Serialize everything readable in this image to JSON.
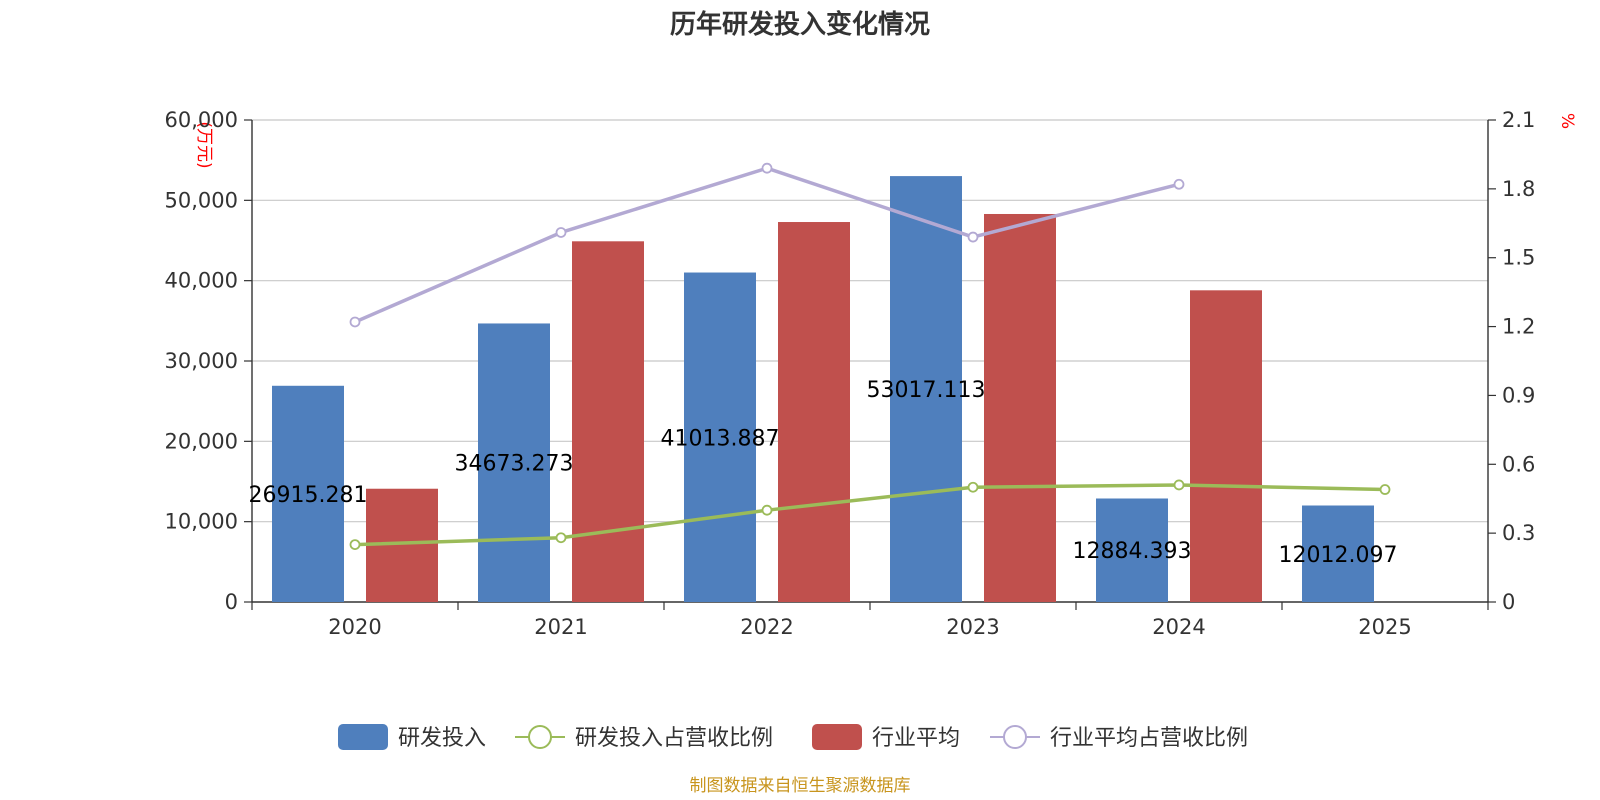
{
  "chart_data": {
    "type": "bar",
    "title": "历年研发投入变化情况",
    "categories": [
      "2020",
      "2021",
      "2022",
      "2023",
      "2024",
      "2025"
    ],
    "y_left": {
      "unit": "(万元)",
      "ylim": [
        0,
        60000
      ],
      "ticks": [
        "0",
        "10,000",
        "20,000",
        "30,000",
        "40,000",
        "50,000",
        "60,000"
      ]
    },
    "y_right": {
      "unit": "%",
      "ylim": [
        0,
        2.1
      ],
      "ticks": [
        "0",
        "0.3",
        "0.6",
        "0.9",
        "1.2",
        "1.5",
        "1.8",
        "2.1"
      ]
    },
    "series": [
      {
        "name": "研发投入",
        "kind": "bar",
        "axis": "left",
        "color": "#4f7fbd",
        "values": [
          26915.281,
          34673.273,
          41013.887,
          53017.113,
          12884.393,
          12012.097
        ],
        "labels": [
          "26915.281",
          "34673.273",
          "41013.887",
          "53017.113",
          "12884.393",
          "12012.097"
        ]
      },
      {
        "name": "研发投入占营收比例",
        "kind": "line",
        "axis": "right",
        "color": "#9bbb59",
        "values": [
          0.25,
          0.28,
          0.4,
          0.5,
          0.51,
          0.49
        ]
      },
      {
        "name": "行业平均",
        "kind": "bar",
        "axis": "left",
        "color": "#c0504d",
        "values": [
          14100,
          44900,
          47300,
          48300,
          38800,
          null
        ]
      },
      {
        "name": "行业平均占营收比例",
        "kind": "line",
        "axis": "right",
        "color": "#b3a9d3",
        "values": [
          1.22,
          1.61,
          1.89,
          1.59,
          1.82,
          null
        ]
      }
    ],
    "legend_position": "bottom-center",
    "grid": true
  },
  "source_text": "制图数据来自恒生聚源数据库"
}
